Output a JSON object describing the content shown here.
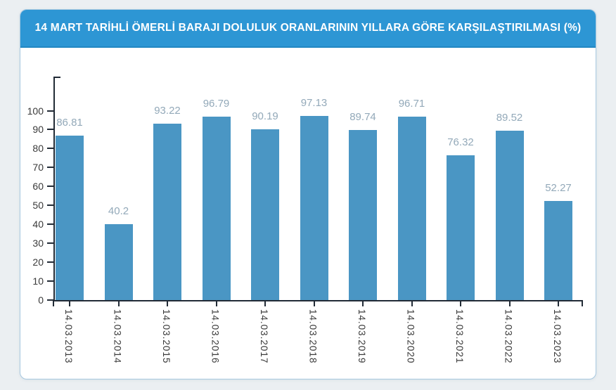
{
  "page": {
    "background": "#ebeff2"
  },
  "card": {
    "background": "#ffffff",
    "border_color": "#a7c8e0"
  },
  "header": {
    "title": "14 MART TARİHLİ ÖMERLİ BARAJI DOLULUK ORANLARININ YILLARA GÖRE KARŞILAŞTIRILMASI (%)",
    "background": "#2d96d4",
    "text_color": "#ffffff"
  },
  "chart_data": {
    "type": "bar",
    "title": "14 MART TARİHLİ ÖMERLİ BARAJI DOLULUK ORANLARININ YILLARA GÖRE KARŞILAŞTIRILMASI (%)",
    "categories": [
      "14.03.2013",
      "14.03.2014",
      "14.03.2015",
      "14.03.2016",
      "14.03.2017",
      "14.03.2018",
      "14.03.2019",
      "14.03.2020",
      "14.03.2021",
      "14.03.2022",
      "14.03.2023"
    ],
    "values": [
      86.81,
      40.2,
      93.22,
      96.79,
      90.19,
      97.13,
      89.74,
      96.71,
      76.32,
      89.52,
      52.27
    ],
    "value_labels": [
      "86.81",
      "40.2",
      "93.22",
      "96.79",
      "90.19",
      "97.13",
      "89.74",
      "96.71",
      "76.32",
      "89.52",
      "52.27"
    ],
    "xlabel": "",
    "ylabel": "",
    "ylim": [
      0,
      118
    ],
    "yticks": [
      0,
      10,
      20,
      30,
      40,
      50,
      60,
      70,
      80,
      90,
      100
    ],
    "grid": false,
    "legend": false,
    "data_labels": true,
    "bar_color": "#4a96c4",
    "value_label_color": "#93a9b9",
    "axis_color": "#222b36",
    "tick_label_color": "#3a3a3a"
  }
}
